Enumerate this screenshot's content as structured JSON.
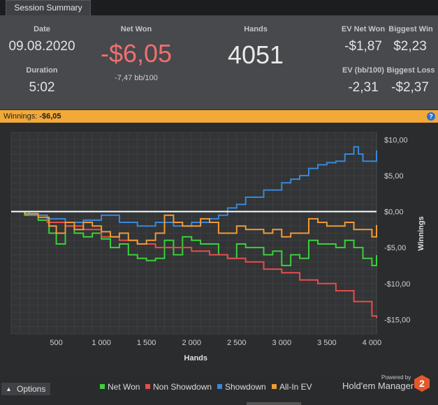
{
  "tab": {
    "label": "Session Summary"
  },
  "summary": {
    "date_label": "Date",
    "date_value": "09.08.2020",
    "duration_label": "Duration",
    "duration_value": "5:02",
    "net_won_label": "Net Won",
    "net_won_value": "-$6,05",
    "net_won_bb": "-7,47 bb/100",
    "hands_label": "Hands",
    "hands_value": "4051",
    "ev_net_won_label": "EV Net Won",
    "ev_net_won_value": "-$1,87",
    "biggest_win_label": "Biggest Win",
    "biggest_win_value": "$2,23",
    "ev_bb_label": "EV (bb/100)",
    "ev_bb_value": "-2,31",
    "biggest_loss_label": "Biggest Loss",
    "biggest_loss_value": "-$2,37"
  },
  "winnings_bar": {
    "label": "Winnings:",
    "value": "-$6,05",
    "help": "?"
  },
  "chart_data": {
    "type": "line",
    "xlabel": "Hands",
    "ylabel": "Winnings",
    "xlim": [
      0,
      4051
    ],
    "ylim": [
      -17,
      11
    ],
    "x_ticks": [
      500,
      1000,
      1500,
      2000,
      2500,
      3000,
      3500,
      4000
    ],
    "x_tick_labels": [
      "500",
      "1 000",
      "1 500",
      "2 000",
      "2 500",
      "3 000",
      "3 500",
      "4 000"
    ],
    "y_ticks": [
      10,
      5,
      0,
      -5,
      -10,
      -15
    ],
    "y_tick_labels": [
      "$10,00",
      "$5,00",
      "$0,00",
      "-$5,00",
      "-$10,00",
      "-$15,00"
    ],
    "grid": true,
    "series": [
      {
        "name": "Net Won",
        "color": "#3ad13a",
        "x": [
          0,
          150,
          300,
          420,
          500,
          600,
          700,
          800,
          900,
          1000,
          1100,
          1200,
          1300,
          1400,
          1500,
          1600,
          1700,
          1800,
          1900,
          2000,
          2100,
          2200,
          2300,
          2400,
          2500,
          2600,
          2700,
          2800,
          2900,
          3000,
          3100,
          3200,
          3300,
          3400,
          3500,
          3600,
          3700,
          3800,
          3900,
          4000,
          4051
        ],
        "y": [
          0,
          -0.5,
          -1.2,
          -3.0,
          -4.5,
          -2.0,
          -3.0,
          -3.5,
          -3.0,
          -3.8,
          -5.0,
          -4.5,
          -6.0,
          -6.5,
          -6.8,
          -6.5,
          -4.0,
          -6.0,
          -3.5,
          -4.0,
          -4.5,
          -4.5,
          -6.0,
          -6.5,
          -4.5,
          -5.0,
          -5.0,
          -6.0,
          -5.5,
          -7.5,
          -6.0,
          -6.5,
          -4.0,
          -4.5,
          -4.5,
          -5.0,
          -4.0,
          -5.0,
          -6.5,
          -7.5,
          -6.05
        ]
      },
      {
        "name": "Non Showdown",
        "color": "#e84c4c",
        "x": [
          0,
          200,
          400,
          600,
          800,
          1000,
          1200,
          1400,
          1600,
          1800,
          2000,
          2200,
          2400,
          2600,
          2800,
          3000,
          3200,
          3400,
          3600,
          3800,
          4000,
          4051
        ],
        "y": [
          0,
          -0.5,
          -1.5,
          -2.0,
          -2.5,
          -3.5,
          -4.0,
          -4.5,
          -5.0,
          -5.0,
          -5.5,
          -6.0,
          -6.5,
          -7.0,
          -8.0,
          -8.5,
          -9.5,
          -10.0,
          -11.0,
          -12.5,
          -14.5,
          -14.8
        ]
      },
      {
        "name": "Showdown",
        "color": "#3a88d8",
        "x": [
          0,
          200,
          400,
          600,
          800,
          1000,
          1200,
          1400,
          1600,
          1800,
          2000,
          2200,
          2300,
          2400,
          2500,
          2600,
          2800,
          3000,
          3100,
          3200,
          3300,
          3400,
          3500,
          3600,
          3700,
          3800,
          3850,
          3900,
          4000,
          4051
        ],
        "y": [
          0,
          -0.5,
          -1.0,
          -1.5,
          -1.2,
          -0.5,
          -1.5,
          -2.0,
          -1.5,
          -2.0,
          -1.5,
          -1.0,
          -0.5,
          0.5,
          1.0,
          2.0,
          3.0,
          4.0,
          4.5,
          5.0,
          6.0,
          6.5,
          6.8,
          7.0,
          8.0,
          9.0,
          8.0,
          7.0,
          7.0,
          8.5
        ]
      },
      {
        "name": "All-In EV",
        "color": "#f09a36",
        "x": [
          0,
          150,
          300,
          420,
          500,
          600,
          700,
          800,
          900,
          1000,
          1100,
          1200,
          1300,
          1400,
          1500,
          1600,
          1700,
          1800,
          1900,
          2000,
          2100,
          2200,
          2300,
          2400,
          2500,
          2600,
          2700,
          2800,
          2900,
          3000,
          3100,
          3200,
          3300,
          3400,
          3500,
          3600,
          3700,
          3800,
          3900,
          4000,
          4051
        ],
        "y": [
          0,
          -0.3,
          -0.8,
          -2.0,
          -3.0,
          -1.5,
          -2.5,
          -1.5,
          -2.0,
          -2.8,
          -3.5,
          -3.0,
          -4.0,
          -4.5,
          -4.0,
          -3.0,
          -0.5,
          -1.5,
          -2.0,
          -2.0,
          -1.0,
          -1.5,
          -3.0,
          -3.0,
          -2.0,
          -2.5,
          -2.5,
          -3.0,
          -2.5,
          -3.5,
          -3.0,
          -3.0,
          -1.0,
          -1.5,
          -2.0,
          -2.0,
          -1.5,
          -2.5,
          -2.5,
          -3.5,
          -1.87
        ]
      }
    ]
  },
  "legend": [
    {
      "label": "Net Won",
      "color": "#3ad13a"
    },
    {
      "label": "Non Showdown",
      "color": "#e84c4c"
    },
    {
      "label": "Showdown",
      "color": "#3a88d8"
    },
    {
      "label": "All-In EV",
      "color": "#f09a36"
    }
  ],
  "footer": {
    "options_label": "Options",
    "powered_by": "Powered by",
    "brand": "Hold'em Manager",
    "brand_version": "2"
  }
}
